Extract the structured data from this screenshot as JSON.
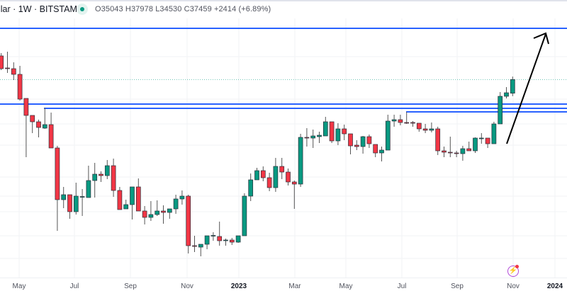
{
  "header": {
    "symbol": "llar · 1W · BITSTAMP",
    "ohlc": "O35043 H37978 L34530 C37459 +2414 (+6.89%)"
  },
  "colors": {
    "up": "#089981",
    "down": "#f23645",
    "level": "#2962ff",
    "last_price": "#089981",
    "arrow": "#000000"
  },
  "chart_data": {
    "type": "candlestick",
    "interval": "1W",
    "x_tick_labels": [
      "May",
      "Jul",
      "Sep",
      "Nov",
      "2023",
      "Mar",
      "May",
      "Jul",
      "Sep",
      "Nov",
      "2024"
    ],
    "ohlc": [
      [
        41625,
        42125,
        39125,
        39375
      ],
      [
        39500,
        42375,
        38625,
        39375
      ],
      [
        39375,
        40500,
        37375,
        38375
      ],
      [
        38375,
        39875,
        33750,
        34000
      ],
      [
        34125,
        34125,
        23750,
        31125
      ],
      [
        31125,
        31125,
        28000,
        30000
      ],
      [
        30000,
        30375,
        27250,
        29000
      ],
      [
        28875,
        32500,
        28750,
        29500
      ],
      [
        29500,
        31625,
        25375,
        25375
      ],
      [
        25375,
        25750,
        10750,
        16250
      ],
      [
        16250,
        18500,
        14750,
        17125
      ],
      [
        17125,
        17125,
        12875,
        14125
      ],
      [
        14125,
        19250,
        13625,
        16875
      ],
      [
        16750,
        18125,
        13375,
        16800
      ],
      [
        16625,
        22250,
        16625,
        19625
      ],
      [
        19625,
        22750,
        16625,
        20750
      ],
      [
        20750,
        21250,
        19375,
        20500
      ],
      [
        20500,
        23250,
        19875,
        22250
      ],
      [
        22250,
        23500,
        16750,
        17875
      ],
      [
        17875,
        18500,
        14500,
        14500
      ],
      [
        14625,
        16250,
        14625,
        15375
      ],
      [
        15375,
        18500,
        12750,
        18500
      ],
      [
        18500,
        20000,
        14250,
        14250
      ],
      [
        14250,
        15125,
        11875,
        13125
      ],
      [
        13125,
        16000,
        12500,
        13625
      ],
      [
        13625,
        16125,
        13375,
        14250
      ],
      [
        14250,
        15250,
        12000,
        14000
      ],
      [
        14000,
        14625,
        12875,
        14625
      ],
      [
        14625,
        17125,
        13750,
        16375
      ],
      [
        16375,
        17875,
        15375,
        16875
      ],
      [
        16875,
        17125,
        6750,
        8125
      ],
      [
        8125,
        9875,
        7000,
        8000
      ],
      [
        7875,
        8375,
        6250,
        8375
      ],
      [
        8375,
        9875,
        7500,
        9875
      ],
      [
        9875,
        10500,
        9000,
        9937
      ],
      [
        9750,
        12375,
        8125,
        9000
      ],
      [
        9063,
        9375,
        8125,
        9125
      ],
      [
        9125,
        9500,
        8250,
        8750
      ],
      [
        8750,
        9875,
        8625,
        9875
      ],
      [
        9875,
        17375,
        9875,
        16875
      ],
      [
        16875,
        20875,
        16000,
        19750
      ],
      [
        19750,
        21875,
        19750,
        21375
      ],
      [
        21375,
        22125,
        19500,
        20125
      ],
      [
        20125,
        21000,
        17750,
        18375
      ],
      [
        18375,
        23625,
        17625,
        22125
      ],
      [
        22125,
        23625,
        19875,
        21125
      ],
      [
        21125,
        21750,
        18750,
        19375
      ],
      [
        19375,
        19625,
        14625,
        19000
      ],
      [
        19000,
        27875,
        18500,
        27250
      ],
      [
        27250,
        28875,
        25625,
        27187
      ],
      [
        27125,
        28625,
        25375,
        27500
      ],
      [
        27375,
        28250,
        26250,
        27625
      ],
      [
        27500,
        30875,
        27500,
        30000
      ],
      [
        30000,
        30000,
        26250,
        26625
      ],
      [
        26625,
        29750,
        25875,
        28750
      ],
      [
        28750,
        29500,
        26750,
        27875
      ],
      [
        27875,
        27875,
        24250,
        25750
      ],
      [
        25875,
        26750,
        25000,
        25625
      ],
      [
        25625,
        27500,
        24375,
        27375
      ],
      [
        27375,
        27750,
        25375,
        26125
      ],
      [
        26000,
        26000,
        23750,
        24500
      ],
      [
        24500,
        25625,
        23000,
        25000
      ],
      [
        25000,
        31250,
        25000,
        30125
      ],
      [
        30125,
        31250,
        29125,
        30375
      ],
      [
        30375,
        31250,
        29375,
        29875
      ],
      [
        29875,
        31750,
        29625,
        29840
      ],
      [
        29875,
        30125,
        29125,
        29750
      ],
      [
        29750,
        29750,
        28250,
        28750
      ],
      [
        28750,
        29625,
        28000,
        28500
      ],
      [
        28500,
        29875,
        28125,
        28750
      ],
      [
        28750,
        29125,
        24125,
        24875
      ],
      [
        24875,
        25625,
        23750,
        24625
      ],
      [
        24625,
        27375,
        23750,
        24500
      ],
      [
        24500,
        24875,
        23750,
        24375
      ],
      [
        24375,
        25750,
        23125,
        25250
      ],
      [
        25250,
        26500,
        24875,
        24875
      ],
      [
        24875,
        27250,
        24500,
        27125
      ],
      [
        27125,
        28000,
        26125,
        27126
      ],
      [
        27125,
        27125,
        25375,
        26125
      ],
      [
        26125,
        30000,
        26125,
        29625
      ],
      [
        29625,
        35250,
        29625,
        34500
      ],
      [
        34500,
        36125,
        34125,
        35125
      ],
      [
        35043,
        37978,
        34530,
        37459
      ]
    ],
    "horizontal_levels": [
      46500,
      33125,
      32375,
      31750
    ],
    "last_price": 37459
  }
}
